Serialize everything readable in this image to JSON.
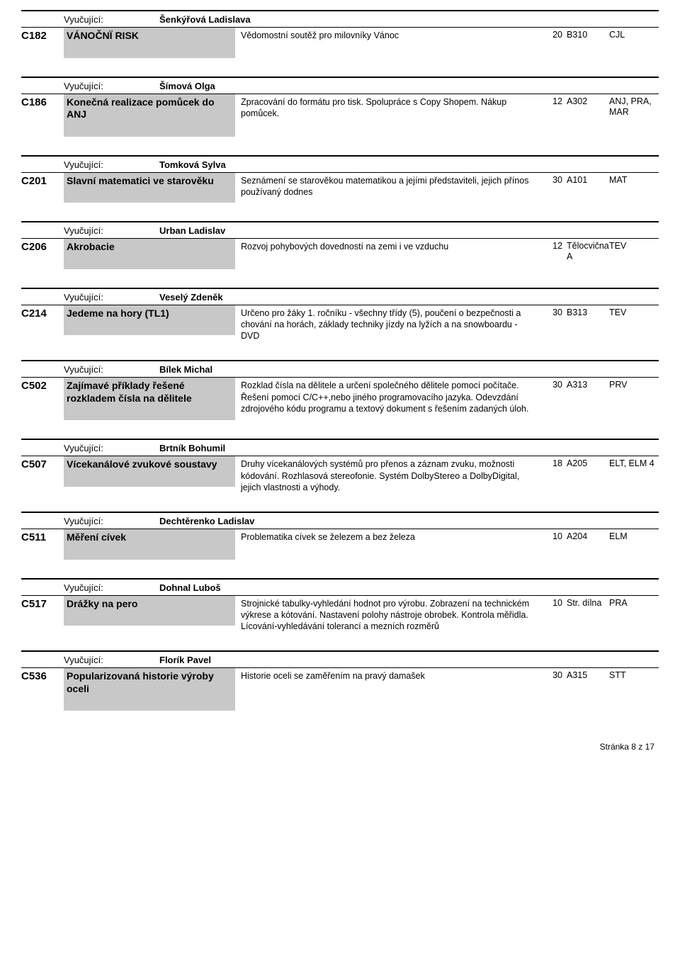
{
  "labels": {
    "teacher": "Vyučující:"
  },
  "footer": "Stránka 8 z 17",
  "groups": [
    {
      "teacher": "Šenkýřová Ladislava",
      "courses": [
        {
          "code": "C182",
          "title": "VÁNOČNÏ RISK",
          "desc": "Vědomostní soutěž pro milovníky Vánoc",
          "num": "20",
          "room": "B310",
          "subj": "CJL"
        }
      ]
    },
    {
      "teacher": "Šímová Olga",
      "courses": [
        {
          "code": "C186",
          "title": "Konečná realizace pomůcek do ANJ",
          "desc": "Zpracování do formátu pro tisk. Spolupráce s Copy Shopem. Nákup pomůcek.",
          "num": "12",
          "room": "A302",
          "subj": "ANJ, PRA, MAR"
        }
      ]
    },
    {
      "teacher": "Tomková Sylva",
      "courses": [
        {
          "code": "C201",
          "title": "Slavní matematici ve starověku",
          "desc": "Seznámení se starověkou matematikou a jejími představiteli, jejich přínos používaný dodnes",
          "num": "30",
          "room": "A101",
          "subj": "MAT"
        }
      ]
    },
    {
      "teacher": "Urban Ladislav",
      "courses": [
        {
          "code": "C206",
          "title": "Akrobacie",
          "desc": "Rozvoj pohybových dovedností na zemi i ve vzduchu",
          "num": "12",
          "room": "Tělocvična A",
          "subj": "TEV"
        }
      ]
    },
    {
      "teacher": "Veselý Zdeněk",
      "courses": [
        {
          "code": "C214",
          "title": "Jedeme na hory (TL1)",
          "desc": "Určeno pro žáky 1. ročníku  - všechny třídy (5), poučení o bezpečnosti a chování na horách, základy techniky jízdy na lyžích a na snowboardu - DVD",
          "num": "30",
          "room": "B313",
          "subj": "TEV"
        }
      ]
    },
    {
      "teacher": "Bílek Michal",
      "courses": [
        {
          "code": "C502",
          "title": "Zajímavé příklady řešené rozkladem čísla na dělitele",
          "desc": "Rozklad čísla na dělitele a určení společného dělitele pomocí počítače. Řešení pomocí C/C++,nebo jiného programovacího jazyka. Odevzdání zdrojového kódu programu a textový dokument s řešením zadaných úloh.",
          "num": "30",
          "room": "A313",
          "subj": "PRV"
        }
      ]
    },
    {
      "teacher": "Brtník Bohumil",
      "courses": [
        {
          "code": "C507",
          "title": "Vícekanálové zvukové soustavy",
          "desc": "Druhy vícekanálových systémů pro přenos a záznam zvuku, možnosti kódování. Rozhlasová stereofonie. Systém DolbyStereo a DolbyDigital, jejich vlastnosti a výhody.",
          "num": "18",
          "room": "A205",
          "subj": "ELT, ELM 4"
        }
      ]
    },
    {
      "teacher": "Dechtěrenko Ladislav",
      "courses": [
        {
          "code": "C511",
          "title": "Měření cívek",
          "desc": "Problematika cívek se železem  a bez železa",
          "num": "10",
          "room": "A204",
          "subj": "ELM"
        }
      ]
    },
    {
      "teacher": "Dohnal Luboš",
      "courses": [
        {
          "code": "C517",
          "title": "Drážky na pero",
          "desc": "Strojnické tabulky-vyhledání hodnot pro výrobu. Zobrazení na technickém výkrese a kótování. Nastavení polohy nástroje obrobek. Kontrola měřidla. Lícování-vyhledávání tolerancí a mezních rozměrů",
          "num": "10",
          "room": "Str. dílna",
          "subj": "PRA"
        }
      ]
    },
    {
      "teacher": "Florík Pavel",
      "courses": [
        {
          "code": "C536",
          "title": "Popularizovaná historie výroby oceli",
          "desc": "Historie oceli se zaměřením na  pravý damašek",
          "num": "30",
          "room": "A315",
          "subj": "STT"
        }
      ]
    }
  ]
}
